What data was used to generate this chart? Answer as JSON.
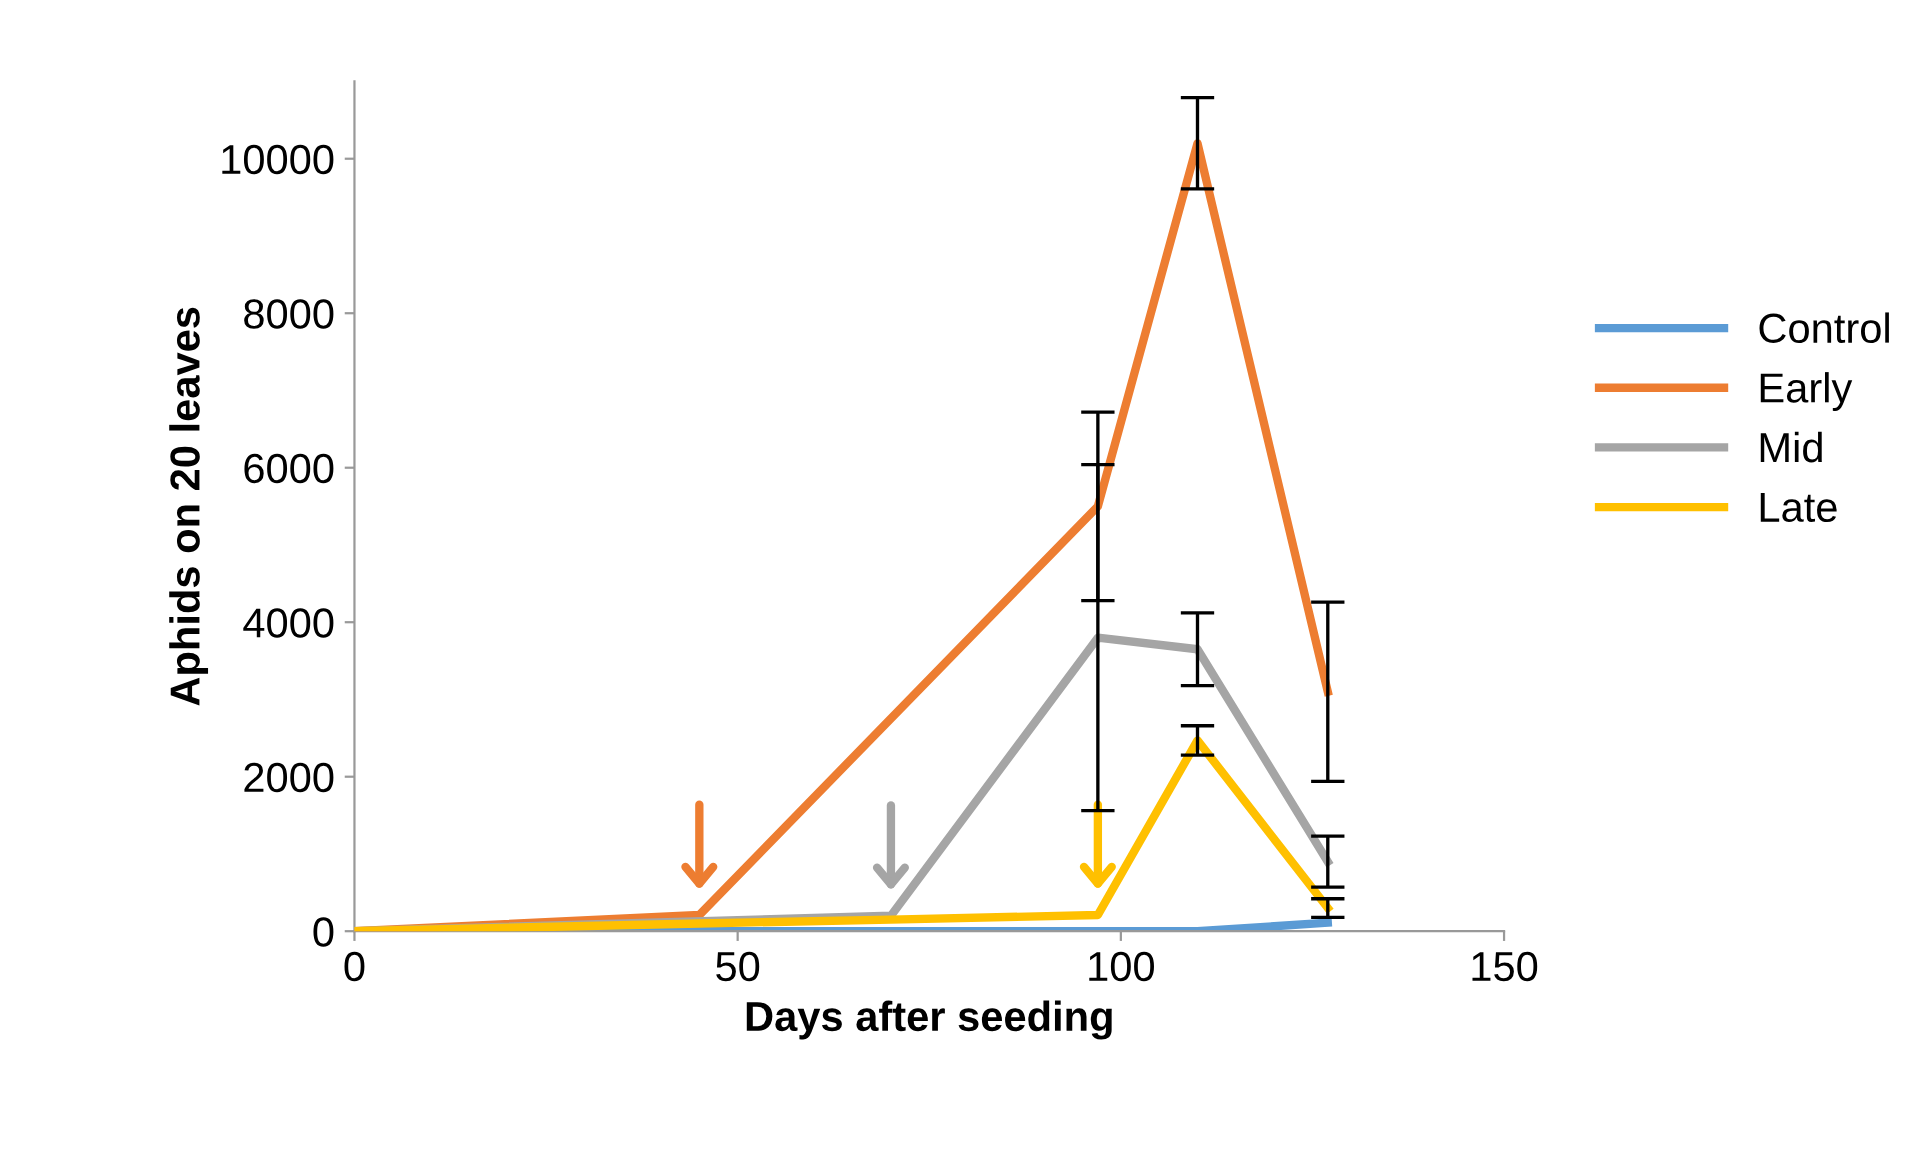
{
  "chart_data": {
    "type": "line",
    "xlabel": "Days after seeding",
    "ylabel": "Aphids on 20 leaves",
    "xlim": [
      0,
      150
    ],
    "xticks": [
      0,
      50,
      100,
      150
    ],
    "ylim": [
      0,
      11000
    ],
    "yticks": [
      0,
      2000,
      4000,
      6000,
      8000,
      10000
    ],
    "grid": false,
    "legend": "right",
    "marker": "none",
    "line_style": "solid",
    "series": [
      {
        "name": "Control",
        "color": "#5b9bd5",
        "x": [
          0,
          45,
          70,
          97,
          110,
          127
        ],
        "values": [
          0,
          0,
          0,
          0,
          0,
          110
        ]
      },
      {
        "name": "Early",
        "color": "#ed7d31",
        "x": [
          0,
          45,
          97,
          110,
          127
        ],
        "values": [
          0,
          210,
          5500,
          10200,
          3100
        ],
        "errors": [
          null,
          null,
          1220,
          590,
          1160
        ]
      },
      {
        "name": "Mid",
        "color": "#a5a5a5",
        "x": [
          0,
          70,
          97,
          110,
          127
        ],
        "values": [
          0,
          200,
          3800,
          3650,
          900
        ],
        "errors": [
          null,
          null,
          2240,
          470,
          330
        ]
      },
      {
        "name": "Late",
        "color": "#ffc000",
        "x": [
          0,
          45,
          70,
          97,
          110,
          127
        ],
        "values": [
          0,
          100,
          150,
          210,
          2470,
          300
        ],
        "errors": [
          null,
          null,
          null,
          null,
          190,
          120
        ]
      }
    ]
  }
}
